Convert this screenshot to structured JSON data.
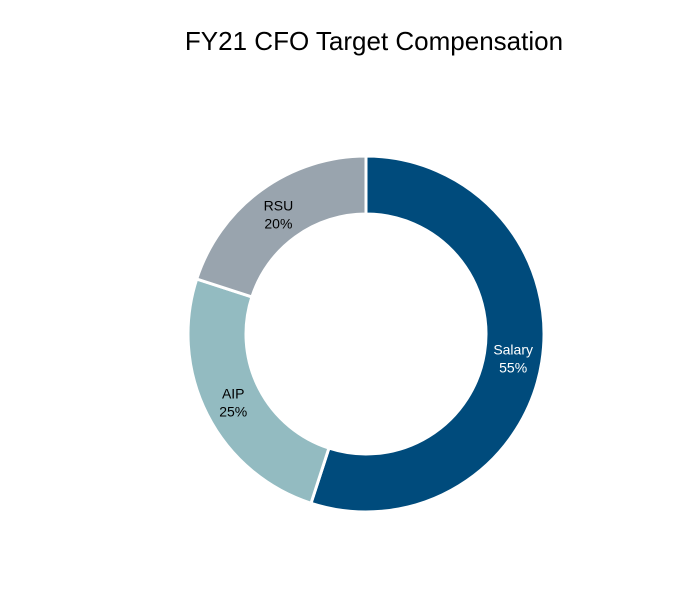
{
  "chart_data": {
    "type": "pie",
    "title": "FY21 CFO Target Compensation",
    "donut": true,
    "slices": [
      {
        "label": "Salary",
        "value": 55,
        "value_label": "55%",
        "color": "#004b7c",
        "text_color": "#ffffff"
      },
      {
        "label": "AIP",
        "value": 25,
        "value_label": "25%",
        "color": "#93bbc1",
        "text_color": "#000000"
      },
      {
        "label": "RSU",
        "value": 20,
        "value_label": "20%",
        "color": "#99a4ae",
        "text_color": "#000000"
      }
    ]
  }
}
